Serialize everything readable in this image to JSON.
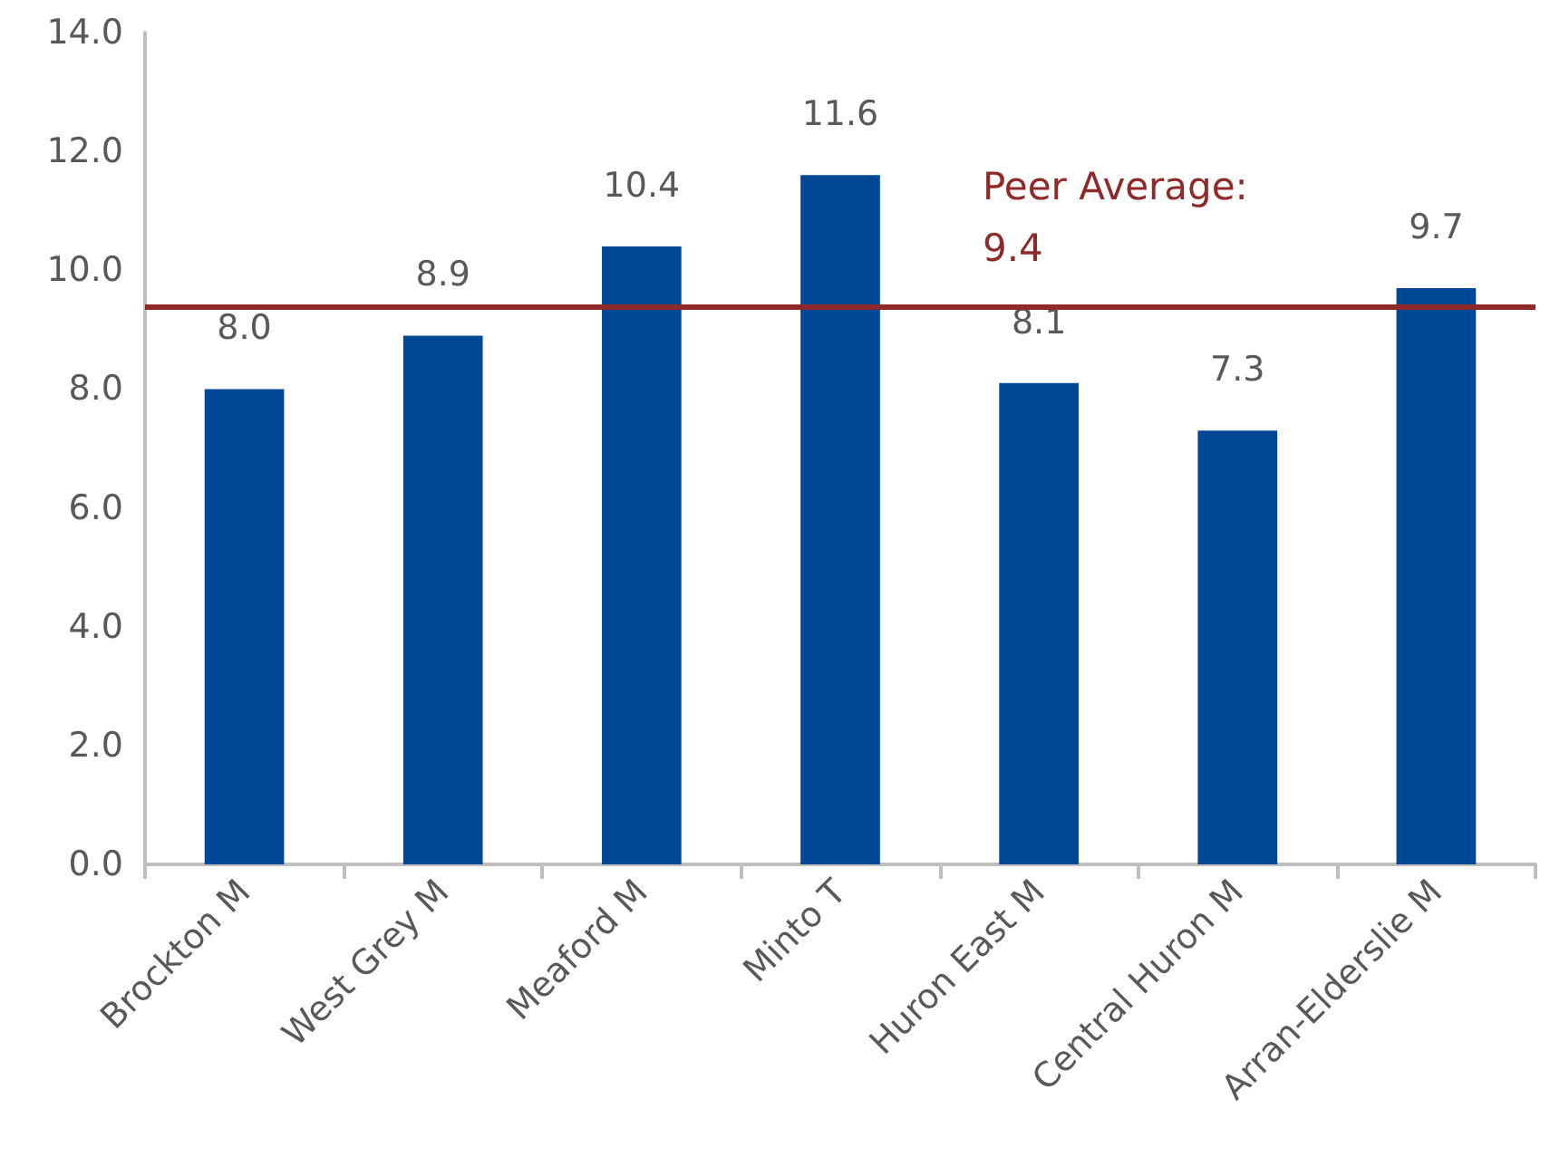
{
  "chart_data": {
    "type": "bar",
    "categories": [
      "Brockton M",
      "West Grey M",
      "Meaford M",
      "Minto T",
      "Huron East M",
      "Central Huron M",
      "Arran-Elderslie M"
    ],
    "values": [
      8.0,
      8.9,
      10.4,
      11.6,
      8.1,
      7.3,
      9.7
    ],
    "value_labels": [
      "8.0",
      "8.9",
      "10.4",
      "11.6",
      "8.1",
      "7.3",
      "9.7"
    ],
    "color": "#004795",
    "ylim": [
      0,
      14
    ],
    "yticks": [
      {
        "value": 0,
        "label": "0.0"
      },
      {
        "value": 2,
        "label": "2.0"
      },
      {
        "value": 4,
        "label": "4.0"
      },
      {
        "value": 6,
        "label": "6.0"
      },
      {
        "value": 8,
        "label": "8.0"
      },
      {
        "value": 10,
        "label": "10.0"
      },
      {
        "value": 12,
        "label": "12.0"
      },
      {
        "value": 14,
        "label": "14.0"
      }
    ],
    "ref_lines": [
      {
        "axis": "y",
        "value": 9.4,
        "label": "Peer Average:\n9.4",
        "color": "#8e2a2a"
      }
    ],
    "grid": false
  }
}
